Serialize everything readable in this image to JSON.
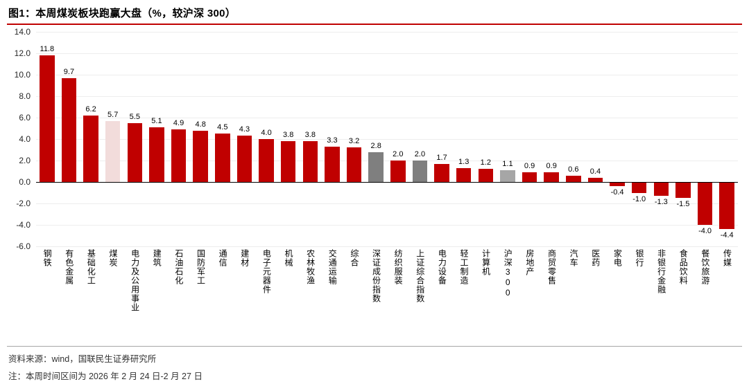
{
  "header": {
    "title": "图1：本周煤炭板块跑赢大盘（%，较沪深 300）"
  },
  "footer": {
    "source": "资料来源：wind，国联民生证券研究所",
    "note": "注：本周时间区间为 2026 年 2 月 24 日-2 月 27 日"
  },
  "colors": {
    "red": "#C00000",
    "pink": "#F2DCDB",
    "gray": "#7F7F7F",
    "lightgray": "#A6A6A6",
    "accent": "#C00000",
    "grid": "#EDEDED"
  },
  "chart_data": {
    "type": "bar",
    "title": "本周煤炭板块跑赢大盘（%，较沪深300）",
    "xlabel": "",
    "ylabel": "",
    "unit": "%",
    "ylim": [
      -6.0,
      14.0
    ],
    "ytick_step": 2.0,
    "yticks": [
      14.0,
      12.0,
      10.0,
      8.0,
      6.0,
      4.0,
      2.0,
      0.0,
      -2.0,
      -4.0,
      -6.0
    ],
    "grid": true,
    "legend": false,
    "highlight_category": "煤炭",
    "index_categories": [
      "深证成份指数",
      "上证综合指数",
      "沪深300"
    ],
    "categories": [
      "钢铁",
      "有色金属",
      "基础化工",
      "煤炭",
      "电力及公用事业",
      "建筑",
      "石油石化",
      "国防军工",
      "通信",
      "建材",
      "电子元器件",
      "机械",
      "农林牧渔",
      "交通运输",
      "综合",
      "深证成份指数",
      "纺织服装",
      "上证综合指数",
      "电力设备",
      "轻工制造",
      "计算机",
      "沪深300",
      "房地产",
      "商贸零售",
      "汽车",
      "医药",
      "家电",
      "银行",
      "非银行金融",
      "食品饮料",
      "餐饮旅游",
      "传媒"
    ],
    "values": [
      11.8,
      9.7,
      6.2,
      5.7,
      5.5,
      5.1,
      4.9,
      4.8,
      4.5,
      4.3,
      4.0,
      3.8,
      3.8,
      3.3,
      3.2,
      2.8,
      2.0,
      2.0,
      1.7,
      1.3,
      1.2,
      1.1,
      0.9,
      0.9,
      0.6,
      0.4,
      -0.4,
      -1.0,
      -1.3,
      -1.5,
      -4.0,
      -4.4
    ],
    "bar_types": [
      "red",
      "red",
      "red",
      "pink",
      "red",
      "red",
      "red",
      "red",
      "red",
      "red",
      "red",
      "red",
      "red",
      "red",
      "red",
      "gray",
      "red",
      "gray",
      "red",
      "red",
      "red",
      "lightgray",
      "red",
      "red",
      "red",
      "red",
      "red",
      "red",
      "red",
      "red",
      "red",
      "red"
    ]
  }
}
